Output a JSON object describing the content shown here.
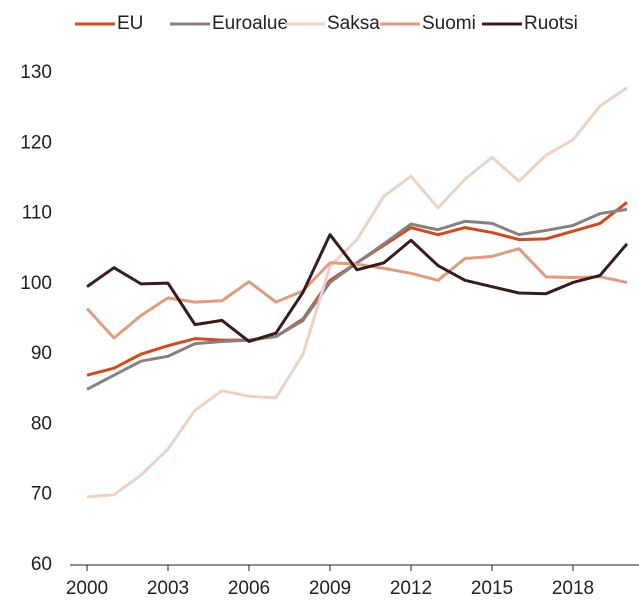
{
  "chart_data": {
    "type": "line",
    "x": [
      2000,
      2001,
      2002,
      2003,
      2004,
      2005,
      2006,
      2007,
      2008,
      2009,
      2010,
      2011,
      2012,
      2013,
      2014,
      2015,
      2016,
      2017,
      2018,
      2019,
      2020
    ],
    "xlim": [
      2000,
      2020
    ],
    "xticks": [
      2000,
      2003,
      2006,
      2009,
      2012,
      2015,
      2018
    ],
    "ylim": [
      60,
      130
    ],
    "yticks": [
      60,
      70,
      80,
      90,
      100,
      110,
      120,
      130
    ],
    "grid": false,
    "legend": "top",
    "series": [
      {
        "name": "EU",
        "color": "#d5481a",
        "values": [
          87,
          88,
          90,
          91.2,
          92.2,
          92,
          92,
          92.5,
          95,
          100.5,
          103,
          105.5,
          108,
          107,
          108,
          107.3,
          106.3,
          106.4,
          107.5,
          108.6,
          111.6
        ]
      },
      {
        "name": "Euroalue",
        "color": "#878080",
        "values": [
          85,
          87,
          89,
          89.7,
          91.5,
          91.8,
          92,
          92.5,
          94.8,
          100.2,
          103,
          105.7,
          108.5,
          107.7,
          108.9,
          108.6,
          107,
          107.6,
          108.3,
          110,
          110.6
        ]
      },
      {
        "name": "Saksa",
        "color": "#ebd2c2",
        "values": [
          69.7,
          70,
          72.8,
          76.5,
          82,
          84.8,
          84,
          83.8,
          90,
          102.5,
          106.3,
          112.5,
          115.3,
          110.8,
          114.9,
          118,
          114.6,
          118.3,
          120.5,
          125.3,
          127.9
        ]
      },
      {
        "name": "Suomi",
        "color": "#e09c7c",
        "values": [
          96.5,
          92.3,
          95.5,
          98,
          97.4,
          97.6,
          100.3,
          97.4,
          99,
          103,
          102.8,
          102.2,
          101.5,
          100.5,
          103.6,
          103.9,
          105,
          101,
          100.9,
          101,
          100.2
        ]
      },
      {
        "name": "Ruotsi",
        "color": "#3a1b1d",
        "values": [
          99.6,
          102.3,
          100,
          100.1,
          94.2,
          94.8,
          91.8,
          93,
          98.8,
          107,
          102,
          103,
          106.2,
          102.6,
          100.5,
          99.6,
          98.7,
          98.6,
          100.2,
          101.2,
          105.7
        ]
      }
    ]
  }
}
